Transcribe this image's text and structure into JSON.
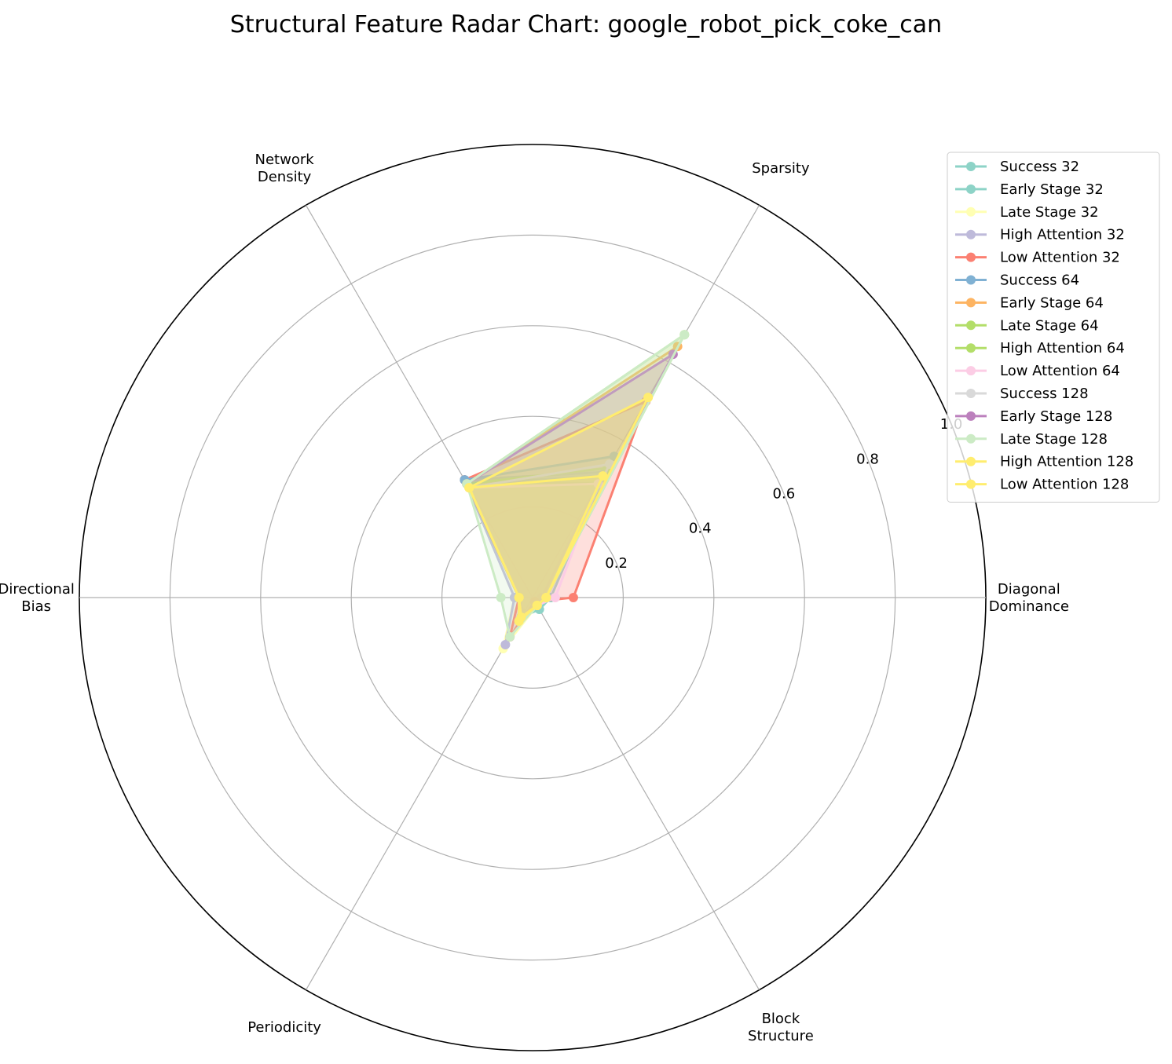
{
  "chart_data": {
    "type": "radar",
    "title": "Structural Feature Radar Chart: google_robot_pick_coke_can",
    "axes": [
      "Diagonal\nDominance",
      "Sparsity",
      "Network\nDensity",
      "Directional\nBias",
      "Periodicity",
      "Block\nStructure"
    ],
    "rlim": [
      0,
      1.0
    ],
    "rticks": [
      0.2,
      0.4,
      0.6,
      0.8,
      1.0
    ],
    "rtick_labels": [
      "0.2",
      "0.4",
      "0.6",
      "0.8",
      "1.0"
    ],
    "grid": true,
    "legend_position": "upper-right",
    "series": [
      {
        "name": "Success 32",
        "color": "#8dd3c7",
        "values": [
          0.03,
          0.32,
          0.3,
          0.03,
          0.04,
          0.02
        ]
      },
      {
        "name": "Early Stage 32",
        "color": "#8dd3c7",
        "values": [
          0.04,
          0.31,
          0.29,
          0.03,
          0.05,
          0.03
        ]
      },
      {
        "name": "Late Stage 32",
        "color": "#ffffb3",
        "values": [
          0.02,
          0.3,
          0.29,
          0.04,
          0.13,
          0.02
        ]
      },
      {
        "name": "High Attention 32",
        "color": "#bebada",
        "values": [
          0.02,
          0.29,
          0.3,
          0.04,
          0.12,
          0.01
        ]
      },
      {
        "name": "Low Attention 32",
        "color": "#fb8072",
        "values": [
          0.09,
          0.5,
          0.3,
          0.03,
          0.1,
          0.01
        ]
      },
      {
        "name": "Success 64",
        "color": "#80b1d3",
        "values": [
          0.03,
          0.36,
          0.3,
          0.03,
          0.05,
          0.02
        ]
      },
      {
        "name": "Early Stage 64",
        "color": "#fdb462",
        "values": [
          0.03,
          0.64,
          0.29,
          0.03,
          0.05,
          0.02
        ]
      },
      {
        "name": "Late Stage 64",
        "color": "#b3de69",
        "values": [
          0.03,
          0.33,
          0.29,
          0.03,
          0.06,
          0.02
        ]
      },
      {
        "name": "High Attention 64",
        "color": "#b3de69",
        "values": [
          0.03,
          0.67,
          0.29,
          0.03,
          0.05,
          0.02
        ]
      },
      {
        "name": "Low Attention 64",
        "color": "#fccde5",
        "values": [
          0.05,
          0.29,
          0.28,
          0.03,
          0.06,
          0.02
        ]
      },
      {
        "name": "Success 128",
        "color": "#d9d9d9",
        "values": [
          0.03,
          0.34,
          0.28,
          0.03,
          0.05,
          0.02
        ]
      },
      {
        "name": "Early Stage 128",
        "color": "#bc80bd",
        "values": [
          0.03,
          0.62,
          0.29,
          0.03,
          0.05,
          0.02
        ]
      },
      {
        "name": "Late Stage 128",
        "color": "#ccebc5",
        "values": [
          0.03,
          0.67,
          0.29,
          0.07,
          0.1,
          0.02
        ]
      },
      {
        "name": "High Attention 128",
        "color": "#ffed6f",
        "values": [
          0.03,
          0.51,
          0.28,
          0.03,
          0.05,
          0.02
        ]
      },
      {
        "name": "Low Attention 128",
        "color": "#ffed6f",
        "values": [
          0.03,
          0.31,
          0.28,
          0.03,
          0.06,
          0.02
        ]
      }
    ]
  }
}
